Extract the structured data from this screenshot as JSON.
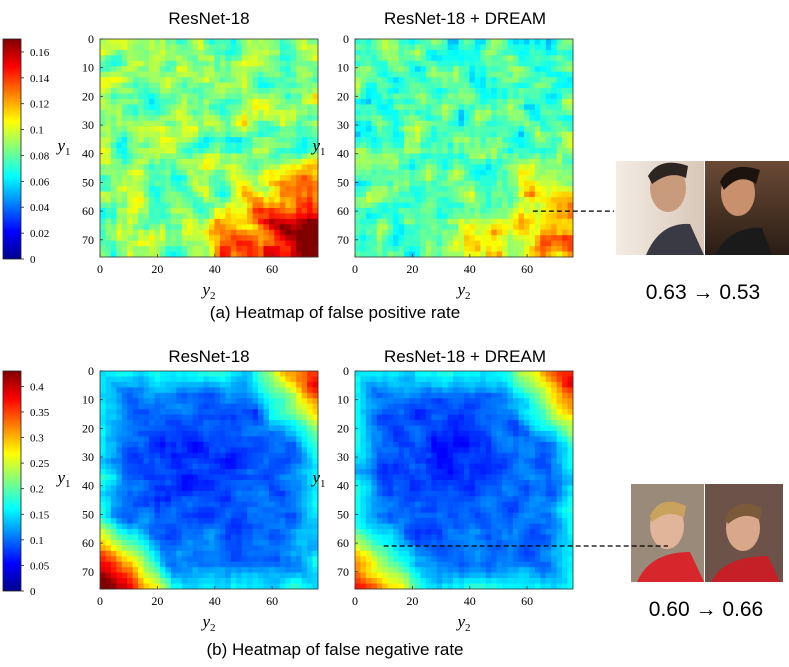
{
  "colors": {
    "jet": [
      "#00008f",
      "#0000ff",
      "#0080ff",
      "#00ffff",
      "#80ff80",
      "#ffff00",
      "#ff8000",
      "#ff0000",
      "#800000"
    ],
    "leader_line": "#000000"
  },
  "chart_data": [
    {
      "type": "heatmap",
      "panel": "a",
      "caption": "(a) Heatmap of false positive rate",
      "xlabel": "y2",
      "ylabel": "y1",
      "x_ticks": [
        0,
        20,
        40,
        60
      ],
      "y_ticks": [
        0,
        10,
        20,
        30,
        40,
        50,
        60,
        70
      ],
      "xlim": [
        0,
        76
      ],
      "ylim": [
        0,
        76
      ],
      "colorbar": {
        "range": [
          0,
          0.17
        ],
        "ticks": [
          "0",
          "0.02",
          "0.04",
          "0.06",
          "0.08",
          "0.1",
          "0.12",
          "0.14",
          "0.16"
        ],
        "tick_values": [
          0,
          0.02,
          0.04,
          0.06,
          0.08,
          0.1,
          0.12,
          0.14,
          0.16
        ]
      },
      "maps": [
        {
          "title": "ResNet-18",
          "mean": 0.085,
          "bottom_right_peak": 0.16
        },
        {
          "title": "ResNet-18 + DREAM",
          "mean": 0.075,
          "bottom_right_peak": 0.12
        }
      ],
      "annotation": {
        "text": "0.63 → 0.53",
        "point": [
          62,
          60
        ]
      }
    },
    {
      "type": "heatmap",
      "panel": "b",
      "caption": "(b) Heatmap of false negative rate",
      "xlabel": "y2",
      "ylabel": "y1",
      "x_ticks": [
        0,
        20,
        40,
        60
      ],
      "y_ticks": [
        0,
        10,
        20,
        30,
        40,
        50,
        60,
        70
      ],
      "xlim": [
        0,
        76
      ],
      "ylim": [
        0,
        76
      ],
      "colorbar": {
        "range": [
          0,
          0.43
        ],
        "ticks": [
          "0",
          "0.05",
          "0.1",
          "0.15",
          "0.2",
          "0.25",
          "0.3",
          "0.35",
          "0.4"
        ],
        "tick_values": [
          0,
          0.05,
          0.1,
          0.15,
          0.2,
          0.25,
          0.3,
          0.35,
          0.4
        ]
      },
      "maps": [
        {
          "title": "ResNet-18",
          "mean": 0.1,
          "bottom_left_peak": 0.4
        },
        {
          "title": "ResNet-18 + DREAM",
          "mean": 0.1,
          "bottom_left_peak": 0.3
        }
      ],
      "annotation": {
        "text": "0.60 → 0.66",
        "point": [
          10,
          61
        ]
      }
    }
  ]
}
